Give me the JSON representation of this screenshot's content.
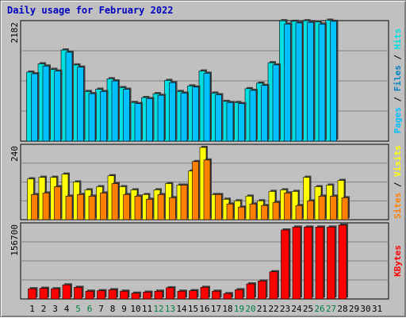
{
  "chart_data": {
    "type": "bar",
    "title": "Daily usage for February 2022",
    "categories": [
      "1",
      "2",
      "3",
      "4",
      "5",
      "6",
      "7",
      "8",
      "9",
      "10",
      "11",
      "12",
      "13",
      "14",
      "15",
      "16",
      "17",
      "18",
      "19",
      "20",
      "21",
      "22",
      "23",
      "24",
      "25",
      "26",
      "27",
      "28",
      "29",
      "30",
      "31"
    ],
    "weekend_days": [
      "5",
      "6",
      "12",
      "13",
      "19",
      "20",
      "26",
      "27"
    ],
    "weekend_label_color": "#008040",
    "weekday_label_color": "#000000",
    "panels": [
      {
        "id": "hits-files-pages",
        "ymax_label": "2182",
        "ymax": 2182,
        "series": [
          {
            "name": "Hits",
            "color": "#00e0e0",
            "values": [
              1250,
              1400,
              1300,
              1650,
              1380,
              900,
              940,
              1130,
              970,
              700,
              790,
              860,
              1100,
              900,
              1000,
              1270,
              870,
              720,
              700,
              950,
              1050,
              1420,
              2180,
              2170,
              2180,
              2160,
              2190,
              null,
              null,
              null,
              null
            ]
          },
          {
            "name": "Files",
            "color": "#0080c0",
            "values": [
              null,
              null,
              null,
              null,
              null,
              null,
              null,
              null,
              null,
              null,
              null,
              null,
              null,
              null,
              null,
              null,
              null,
              null,
              null,
              null,
              null,
              null,
              null,
              null,
              null,
              null,
              null,
              null,
              null,
              null,
              null
            ]
          },
          {
            "name": "Pages",
            "color": "#00c0ff",
            "values": [
              1220,
              1360,
              1270,
              1610,
              1340,
              860,
              900,
              1090,
              940,
              680,
              770,
              830,
              1060,
              870,
              980,
              1230,
              840,
              700,
              680,
              920,
              1010,
              1380,
              2120,
              2140,
              2150,
              2120,
              2170,
              null,
              null,
              null,
              null
            ]
          }
        ],
        "side_labels": [
          {
            "text": "Pages",
            "color": "#00c0ff"
          },
          {
            "text": " / ",
            "color": "#000000"
          },
          {
            "text": "Files",
            "color": "#0080c0"
          },
          {
            "text": " / ",
            "color": "#000000"
          },
          {
            "text": "Hits",
            "color": "#00e0e0"
          }
        ]
      },
      {
        "id": "visits-sites",
        "ymax_label": "240",
        "ymax": 240,
        "series": [
          {
            "name": "Visits",
            "color": "#ffff00",
            "values": [
              130,
              135,
              135,
              145,
              120,
              95,
              105,
              140,
              105,
              95,
              80,
              95,
              115,
              110,
              155,
              230,
              80,
              65,
              60,
              75,
              60,
              90,
              95,
              90,
              135,
              105,
              110,
              125,
              null,
              null,
              null
            ]
          },
          {
            "name": "Sites",
            "color": "#ff8000",
            "values": [
              80,
              85,
              105,
              75,
              80,
              75,
              85,
              115,
              80,
              75,
              65,
              80,
              70,
              110,
              185,
              190,
              80,
              50,
              40,
              50,
              45,
              55,
              85,
              45,
              60,
              75,
              75,
              70,
              null,
              null,
              null
            ]
          }
        ],
        "side_labels": [
          {
            "text": "Sites",
            "color": "#ff8000"
          },
          {
            "text": " / ",
            "color": "#000000"
          },
          {
            "text": "Visits",
            "color": "#ffff00"
          }
        ]
      },
      {
        "id": "kbytes",
        "ymax_label": "156700",
        "ymax": 156700,
        "series": [
          {
            "name": "KBytes",
            "color": "#ff0000",
            "values": [
              21000,
              22000,
              21000,
              29000,
              24000,
              16000,
              17000,
              19000,
              16000,
              12000,
              14000,
              16000,
              23000,
              16000,
              17000,
              24000,
              16000,
              11000,
              19000,
              31000,
              37000,
              56000,
              142000,
              148000,
              148000,
              148000,
              148000,
              152000,
              null,
              null,
              null
            ]
          }
        ],
        "side_labels": [
          {
            "text": "KBytes",
            "color": "#ff0000"
          }
        ]
      }
    ],
    "grid": true,
    "legend": "right-side vertical"
  }
}
